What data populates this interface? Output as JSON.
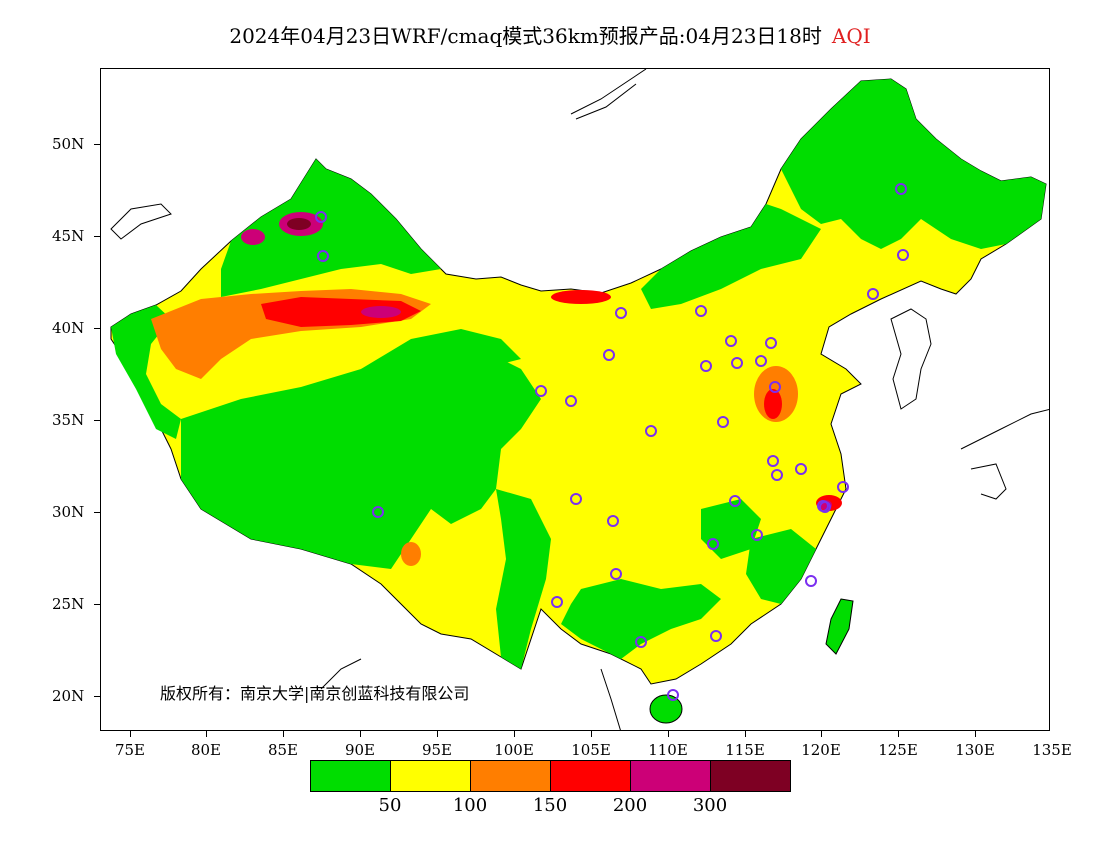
{
  "title": {
    "main": "2024年04月23日WRF/cmaq模式36km预报产品:04月23日18时",
    "variable": "AQI",
    "variable_color": "#e02020"
  },
  "axes": {
    "lat_labels": [
      "50N",
      "45N",
      "40N",
      "35N",
      "30N",
      "25N",
      "20N"
    ],
    "lon_labels": [
      "75E",
      "80E",
      "85E",
      "90E",
      "95E",
      "100E",
      "105E",
      "110E",
      "115E",
      "120E",
      "125E",
      "130E",
      "135E"
    ]
  },
  "copyright": "版权所有：南京大学|南京创蓝科技有限公司",
  "legend": {
    "colors": [
      "#00dd00",
      "#ffff00",
      "#ff7e00",
      "#ff0000",
      "#cc0077",
      "#7e0023"
    ],
    "thresholds": [
      "50",
      "100",
      "150",
      "200",
      "300"
    ]
  },
  "map": {
    "base_color": "#ffff00",
    "low_color": "#00dd00",
    "moderate_color": "#ff7e00",
    "high_color": "#ff0000",
    "very_high_color": "#cc0077",
    "city_marker_color": "#7b2ff0"
  }
}
